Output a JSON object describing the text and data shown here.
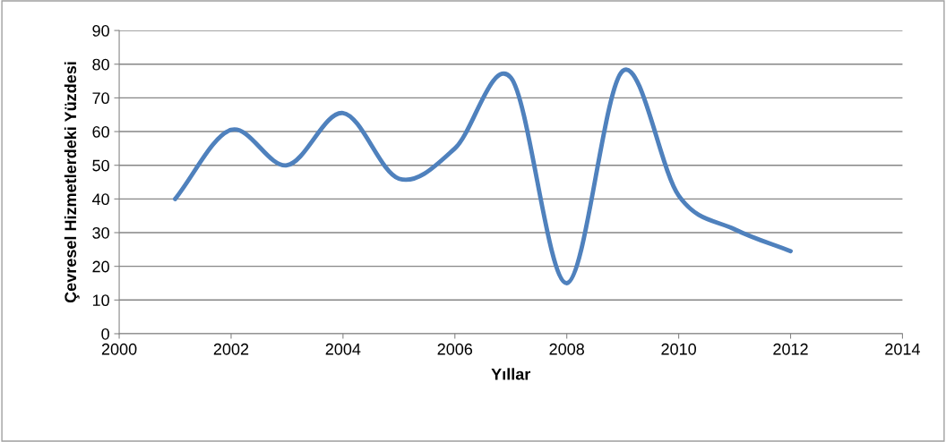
{
  "chart_data": {
    "type": "line",
    "xlabel": "Yıllar",
    "ylabel": "Çevresel Hizmetlerdeki Yüzdesi",
    "x": [
      2001,
      2002,
      2003,
      2004,
      2005,
      2006,
      2007,
      2008,
      2009,
      2010,
      2011,
      2012
    ],
    "series": [
      {
        "color": "#4f81bd",
        "values": [
          40,
          60.5,
          50,
          65.5,
          46,
          55,
          76,
          15,
          78,
          41,
          31,
          24.5
        ]
      }
    ],
    "xlim": [
      2000,
      2014
    ],
    "xticks": [
      2000,
      2002,
      2004,
      2006,
      2008,
      2010,
      2012,
      2014
    ],
    "ylim": [
      0,
      90
    ],
    "yticks": [
      0,
      10,
      20,
      30,
      40,
      50,
      60,
      70,
      80,
      90
    ],
    "grid": "y",
    "marker": "none",
    "line_style": "solid",
    "legend": false
  }
}
